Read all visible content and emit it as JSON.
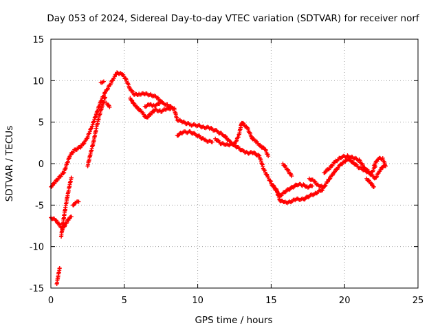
{
  "chart_data": {
    "type": "scatter",
    "title": "Day 053 of 2024, Sidereal Day-to-day VTEC variation (SDTVAR) for receiver norf",
    "xlabel": "GPS time / hours",
    "ylabel": "SDTVAR / TECUs",
    "xlim": [
      0,
      25
    ],
    "ylim": [
      -15,
      15
    ],
    "xticks": [
      0,
      5,
      10,
      15,
      20,
      25
    ],
    "yticks": [
      -15,
      -10,
      -5,
      0,
      5,
      10,
      15
    ],
    "grid": true,
    "marker": "+",
    "series_color": "#ff0000",
    "tracks": [
      [
        [
          0.0,
          -2.8
        ],
        [
          0.3,
          -2.2
        ],
        [
          0.6,
          -1.6
        ],
        [
          0.9,
          -1.0
        ],
        [
          1.1,
          0.0
        ],
        [
          1.3,
          1.0
        ],
        [
          1.6,
          1.6
        ],
        [
          2.0,
          2.0
        ],
        [
          2.4,
          2.8
        ],
        [
          2.8,
          4.5
        ],
        [
          3.1,
          6.0
        ],
        [
          3.4,
          7.5
        ],
        [
          3.7,
          8.6
        ],
        [
          4.0,
          9.4
        ],
        [
          4.3,
          10.4
        ],
        [
          4.5,
          10.9
        ],
        [
          4.8,
          10.9
        ],
        [
          5.1,
          10.2
        ],
        [
          5.4,
          9.0
        ],
        [
          5.7,
          8.3
        ],
        [
          6.0,
          8.4
        ],
        [
          6.4,
          8.4
        ],
        [
          6.8,
          8.3
        ],
        [
          7.2,
          8.0
        ],
        [
          7.6,
          7.3
        ],
        [
          8.0,
          7.0
        ],
        [
          8.4,
          6.6
        ],
        [
          8.6,
          5.3
        ],
        [
          9.0,
          5.0
        ],
        [
          9.5,
          4.7
        ],
        [
          10.0,
          4.6
        ],
        [
          10.4,
          4.4
        ],
        [
          10.8,
          4.3
        ],
        [
          11.3,
          3.9
        ],
        [
          11.8,
          3.4
        ],
        [
          12.2,
          2.6
        ],
        [
          12.6,
          2.1
        ],
        [
          13.0,
          1.6
        ],
        [
          13.4,
          1.3
        ],
        [
          13.8,
          1.3
        ],
        [
          14.2,
          0.9
        ],
        [
          14.5,
          -0.7
        ],
        [
          14.8,
          -1.7
        ],
        [
          15.1,
          -2.6
        ],
        [
          15.4,
          -3.4
        ],
        [
          15.6,
          -4.4
        ],
        [
          15.9,
          -4.7
        ],
        [
          16.3,
          -4.6
        ],
        [
          16.7,
          -4.3
        ],
        [
          17.2,
          -4.3
        ],
        [
          17.6,
          -3.9
        ],
        [
          18.0,
          -3.6
        ],
        [
          18.5,
          -3.1
        ],
        [
          18.9,
          -2.0
        ],
        [
          19.3,
          -1.0
        ],
        [
          19.7,
          -0.2
        ],
        [
          20.0,
          0.3
        ],
        [
          20.3,
          0.5
        ],
        [
          20.6,
          0.1
        ],
        [
          21.0,
          -0.5
        ],
        [
          21.4,
          -0.8
        ],
        [
          21.8,
          -1.3
        ],
        [
          22.1,
          -1.8
        ],
        [
          22.4,
          -0.8
        ],
        [
          22.7,
          -0.2
        ]
      ],
      [
        [
          0.0,
          -6.5
        ],
        [
          0.3,
          -6.8
        ],
        [
          0.6,
          -7.4
        ],
        [
          0.8,
          -7.9
        ],
        [
          1.0,
          -7.3
        ],
        [
          1.2,
          -6.7
        ],
        [
          1.4,
          -6.4
        ]
      ],
      [
        [
          0.4,
          -14.5
        ],
        [
          0.5,
          -13.5
        ],
        [
          0.6,
          -12.6
        ]
      ],
      [
        [
          0.7,
          -8.8
        ],
        [
          0.8,
          -7.5
        ],
        [
          0.9,
          -6.3
        ],
        [
          1.0,
          -5.2
        ],
        [
          1.1,
          -4.2
        ],
        [
          1.2,
          -3.3
        ],
        [
          1.3,
          -2.4
        ],
        [
          1.4,
          -1.7
        ]
      ],
      [
        [
          1.5,
          -5.0
        ],
        [
          1.7,
          -4.7
        ],
        [
          1.9,
          -4.6
        ]
      ],
      [
        [
          2.5,
          -0.3
        ],
        [
          2.7,
          1.2
        ],
        [
          2.9,
          2.6
        ],
        [
          3.1,
          4.3
        ],
        [
          3.3,
          5.8
        ],
        [
          3.5,
          7.0
        ],
        [
          3.7,
          8.0
        ]
      ],
      [
        [
          3.4,
          9.8
        ],
        [
          3.6,
          9.9
        ]
      ],
      [
        [
          3.8,
          7.3
        ],
        [
          4.0,
          6.8
        ]
      ],
      [
        [
          5.4,
          7.9
        ],
        [
          5.6,
          7.3
        ],
        [
          5.9,
          6.7
        ],
        [
          6.2,
          6.2
        ],
        [
          6.5,
          5.5
        ],
        [
          6.8,
          6.0
        ],
        [
          7.1,
          6.5
        ],
        [
          7.5,
          6.3
        ],
        [
          7.9,
          6.6
        ],
        [
          8.3,
          6.7
        ]
      ],
      [
        [
          6.4,
          6.9
        ],
        [
          6.7,
          7.1
        ],
        [
          7.0,
          7.0
        ],
        [
          7.4,
          7.2
        ]
      ],
      [
        [
          8.6,
          3.4
        ],
        [
          9.0,
          3.8
        ],
        [
          9.5,
          3.8
        ],
        [
          10.0,
          3.4
        ],
        [
          10.5,
          2.8
        ],
        [
          11.0,
          2.6
        ]
      ],
      [
        [
          11.2,
          3.0
        ],
        [
          11.6,
          2.4
        ],
        [
          12.0,
          2.3
        ],
        [
          12.5,
          2.3
        ],
        [
          12.8,
          3.4
        ],
        [
          13.0,
          5.0
        ],
        [
          13.4,
          4.2
        ],
        [
          13.7,
          3.1
        ],
        [
          14.0,
          2.6
        ],
        [
          14.3,
          2.1
        ],
        [
          14.6,
          1.7
        ],
        [
          14.8,
          0.9
        ]
      ],
      [
        [
          15.0,
          -2.4
        ],
        [
          15.3,
          -3.0
        ],
        [
          15.6,
          -3.9
        ],
        [
          16.0,
          -3.3
        ],
        [
          16.4,
          -2.9
        ],
        [
          16.8,
          -2.5
        ],
        [
          17.2,
          -2.6
        ],
        [
          17.5,
          -2.8
        ],
        [
          17.8,
          -2.7
        ]
      ],
      [
        [
          15.8,
          0.0
        ],
        [
          16.1,
          -0.7
        ],
        [
          16.4,
          -1.5
        ]
      ],
      [
        [
          17.6,
          -1.8
        ],
        [
          17.9,
          -2.1
        ],
        [
          18.2,
          -2.6
        ],
        [
          18.5,
          -2.8
        ]
      ],
      [
        [
          18.6,
          -1.1
        ],
        [
          19.0,
          -0.5
        ],
        [
          19.4,
          0.3
        ],
        [
          19.8,
          0.8
        ],
        [
          20.2,
          0.9
        ],
        [
          20.6,
          0.7
        ],
        [
          21.0,
          0.4
        ],
        [
          21.4,
          -0.6
        ],
        [
          21.8,
          -1.2
        ],
        [
          22.1,
          -0.3
        ]
      ],
      [
        [
          21.5,
          -1.8
        ],
        [
          21.8,
          -2.4
        ],
        [
          22.0,
          -2.8
        ]
      ],
      [
        [
          22.0,
          -0.2
        ],
        [
          22.3,
          0.6
        ],
        [
          22.6,
          0.6
        ],
        [
          22.8,
          -0.3
        ]
      ]
    ]
  }
}
